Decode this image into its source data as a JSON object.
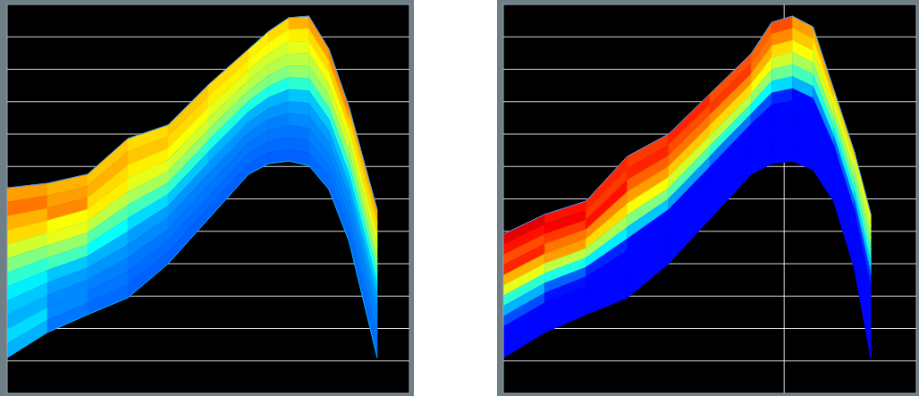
{
  "chart_data": [
    {
      "type": "heatmap",
      "x": [
        0,
        10,
        20,
        30,
        40,
        50,
        60,
        65,
        70,
        75,
        80,
        85,
        92
      ],
      "upper": [
        6.34,
        6.48,
        6.76,
        7.86,
        8.28,
        9.52,
        10.62,
        11.17,
        11.59,
        11.64,
        10.62,
        8.83,
        5.66
      ],
      "lower": [
        1.1,
        1.88,
        2.43,
        2.95,
        4.0,
        5.38,
        6.76,
        7.09,
        7.17,
        7.03,
        6.29,
        4.69,
        1.1
      ],
      "cells": [
        [
          0.72,
          0.7,
          0.68,
          0.66,
          0.68,
          0.66,
          0.64,
          0.66,
          0.7,
          0.72,
          0.74,
          0.7
        ],
        [
          0.76,
          0.72,
          0.7,
          0.68,
          0.66,
          0.64,
          0.62,
          0.62,
          0.64,
          0.66,
          0.68,
          0.66
        ],
        [
          0.7,
          0.74,
          0.66,
          0.64,
          0.62,
          0.6,
          0.58,
          0.58,
          0.6,
          0.62,
          0.62,
          0.6
        ],
        [
          0.66,
          0.62,
          0.64,
          0.6,
          0.58,
          0.56,
          0.55,
          0.55,
          0.56,
          0.56,
          0.58,
          0.56
        ],
        [
          0.58,
          0.6,
          0.56,
          0.54,
          0.52,
          0.5,
          0.5,
          0.5,
          0.52,
          0.52,
          0.52,
          0.5
        ],
        [
          0.5,
          0.52,
          0.46,
          0.44,
          0.42,
          0.4,
          0.4,
          0.4,
          0.42,
          0.42,
          0.42,
          0.4
        ],
        [
          0.42,
          0.44,
          0.38,
          0.34,
          0.32,
          0.3,
          0.3,
          0.3,
          0.32,
          0.32,
          0.32,
          0.32
        ],
        [
          0.36,
          0.32,
          0.3,
          0.28,
          0.27,
          0.27,
          0.27,
          0.27,
          0.28,
          0.28,
          0.28,
          0.28
        ],
        [
          0.32,
          0.28,
          0.27,
          0.26,
          0.25,
          0.25,
          0.25,
          0.25,
          0.26,
          0.26,
          0.26,
          0.26
        ],
        [
          0.3,
          0.26,
          0.25,
          0.24,
          0.24,
          0.24,
          0.24,
          0.24,
          0.24,
          0.25,
          0.25,
          0.25
        ],
        [
          0.34,
          0.26,
          0.24,
          0.23,
          0.23,
          0.23,
          0.23,
          0.23,
          0.23,
          0.24,
          0.24,
          0.24
        ],
        [
          0.3,
          0.24,
          0.23,
          0.22,
          0.22,
          0.22,
          0.22,
          0.22,
          0.22,
          0.23,
          0.23,
          0.23
        ]
      ],
      "value_range": [
        0,
        1
      ],
      "xlim": [
        0,
        100
      ],
      "xticks": [],
      "ylim": [
        0,
        12
      ],
      "yticks": [
        1,
        2,
        3,
        4,
        5,
        6,
        7,
        8,
        9,
        10,
        11
      ],
      "grid": true,
      "tick_labels": false
    },
    {
      "type": "heatmap",
      "x": [
        0,
        10,
        20,
        30,
        40,
        50,
        60,
        65,
        70,
        75,
        80,
        85,
        89
      ],
      "upper": [
        4.91,
        5.52,
        5.93,
        7.31,
        8.0,
        9.24,
        10.48,
        11.45,
        11.64,
        11.31,
        9.38,
        7.45,
        5.52
      ],
      "lower": [
        1.1,
        1.88,
        2.43,
        2.95,
        4.0,
        5.38,
        6.76,
        7.09,
        7.17,
        6.9,
        5.93,
        3.86,
        1.1
      ],
      "cells": [
        [
          0.9,
          0.86,
          0.84,
          0.82,
          0.84,
          0.8,
          0.78,
          0.8,
          0.72,
          0.7,
          0.66,
          0.62
        ],
        [
          0.86,
          0.88,
          0.82,
          0.84,
          0.8,
          0.82,
          0.76,
          0.74,
          0.68,
          0.64,
          0.6,
          0.56
        ],
        [
          0.8,
          0.82,
          0.86,
          0.78,
          0.76,
          0.74,
          0.7,
          0.66,
          0.62,
          0.58,
          0.54,
          0.5
        ],
        [
          0.84,
          0.76,
          0.74,
          0.72,
          0.68,
          0.66,
          0.62,
          0.58,
          0.54,
          0.5,
          0.46,
          0.42
        ],
        [
          0.7,
          0.72,
          0.66,
          0.62,
          0.58,
          0.56,
          0.52,
          0.48,
          0.44,
          0.4,
          0.36,
          0.32
        ],
        [
          0.6,
          0.56,
          0.54,
          0.5,
          0.46,
          0.42,
          0.38,
          0.34,
          0.3,
          0.26,
          0.22,
          0.18
        ],
        [
          0.42,
          0.4,
          0.36,
          0.32,
          0.28,
          0.24,
          0.2,
          0.16,
          0.13,
          0.13,
          0.13,
          0.13
        ],
        [
          0.3,
          0.22,
          0.16,
          0.13,
          0.13,
          0.13,
          0.13,
          0.13,
          0.13,
          0.13,
          0.13,
          0.13
        ],
        [
          0.2,
          0.14,
          0.13,
          0.13,
          0.13,
          0.13,
          0.13,
          0.13,
          0.13,
          0.13,
          0.13,
          0.13
        ],
        [
          0.13,
          0.13,
          0.13,
          0.13,
          0.13,
          0.13,
          0.13,
          0.13,
          0.13,
          0.13,
          0.13,
          0.13
        ],
        [
          0.13,
          0.13,
          0.13,
          0.13,
          0.13,
          0.13,
          0.13,
          0.13,
          0.13,
          0.13,
          0.13,
          0.13
        ],
        [
          0.13,
          0.13,
          0.13,
          0.13,
          0.13,
          0.13,
          0.13,
          0.13,
          0.13,
          0.13,
          0.13,
          0.13
        ]
      ],
      "value_range": [
        0,
        1
      ],
      "xlim": [
        0,
        100
      ],
      "xticks": [
        68
      ],
      "ylim": [
        0,
        12
      ],
      "yticks": [
        1,
        2,
        3,
        4,
        5,
        6,
        7,
        8,
        9,
        10,
        11
      ],
      "grid": true,
      "tick_labels": false
    }
  ]
}
